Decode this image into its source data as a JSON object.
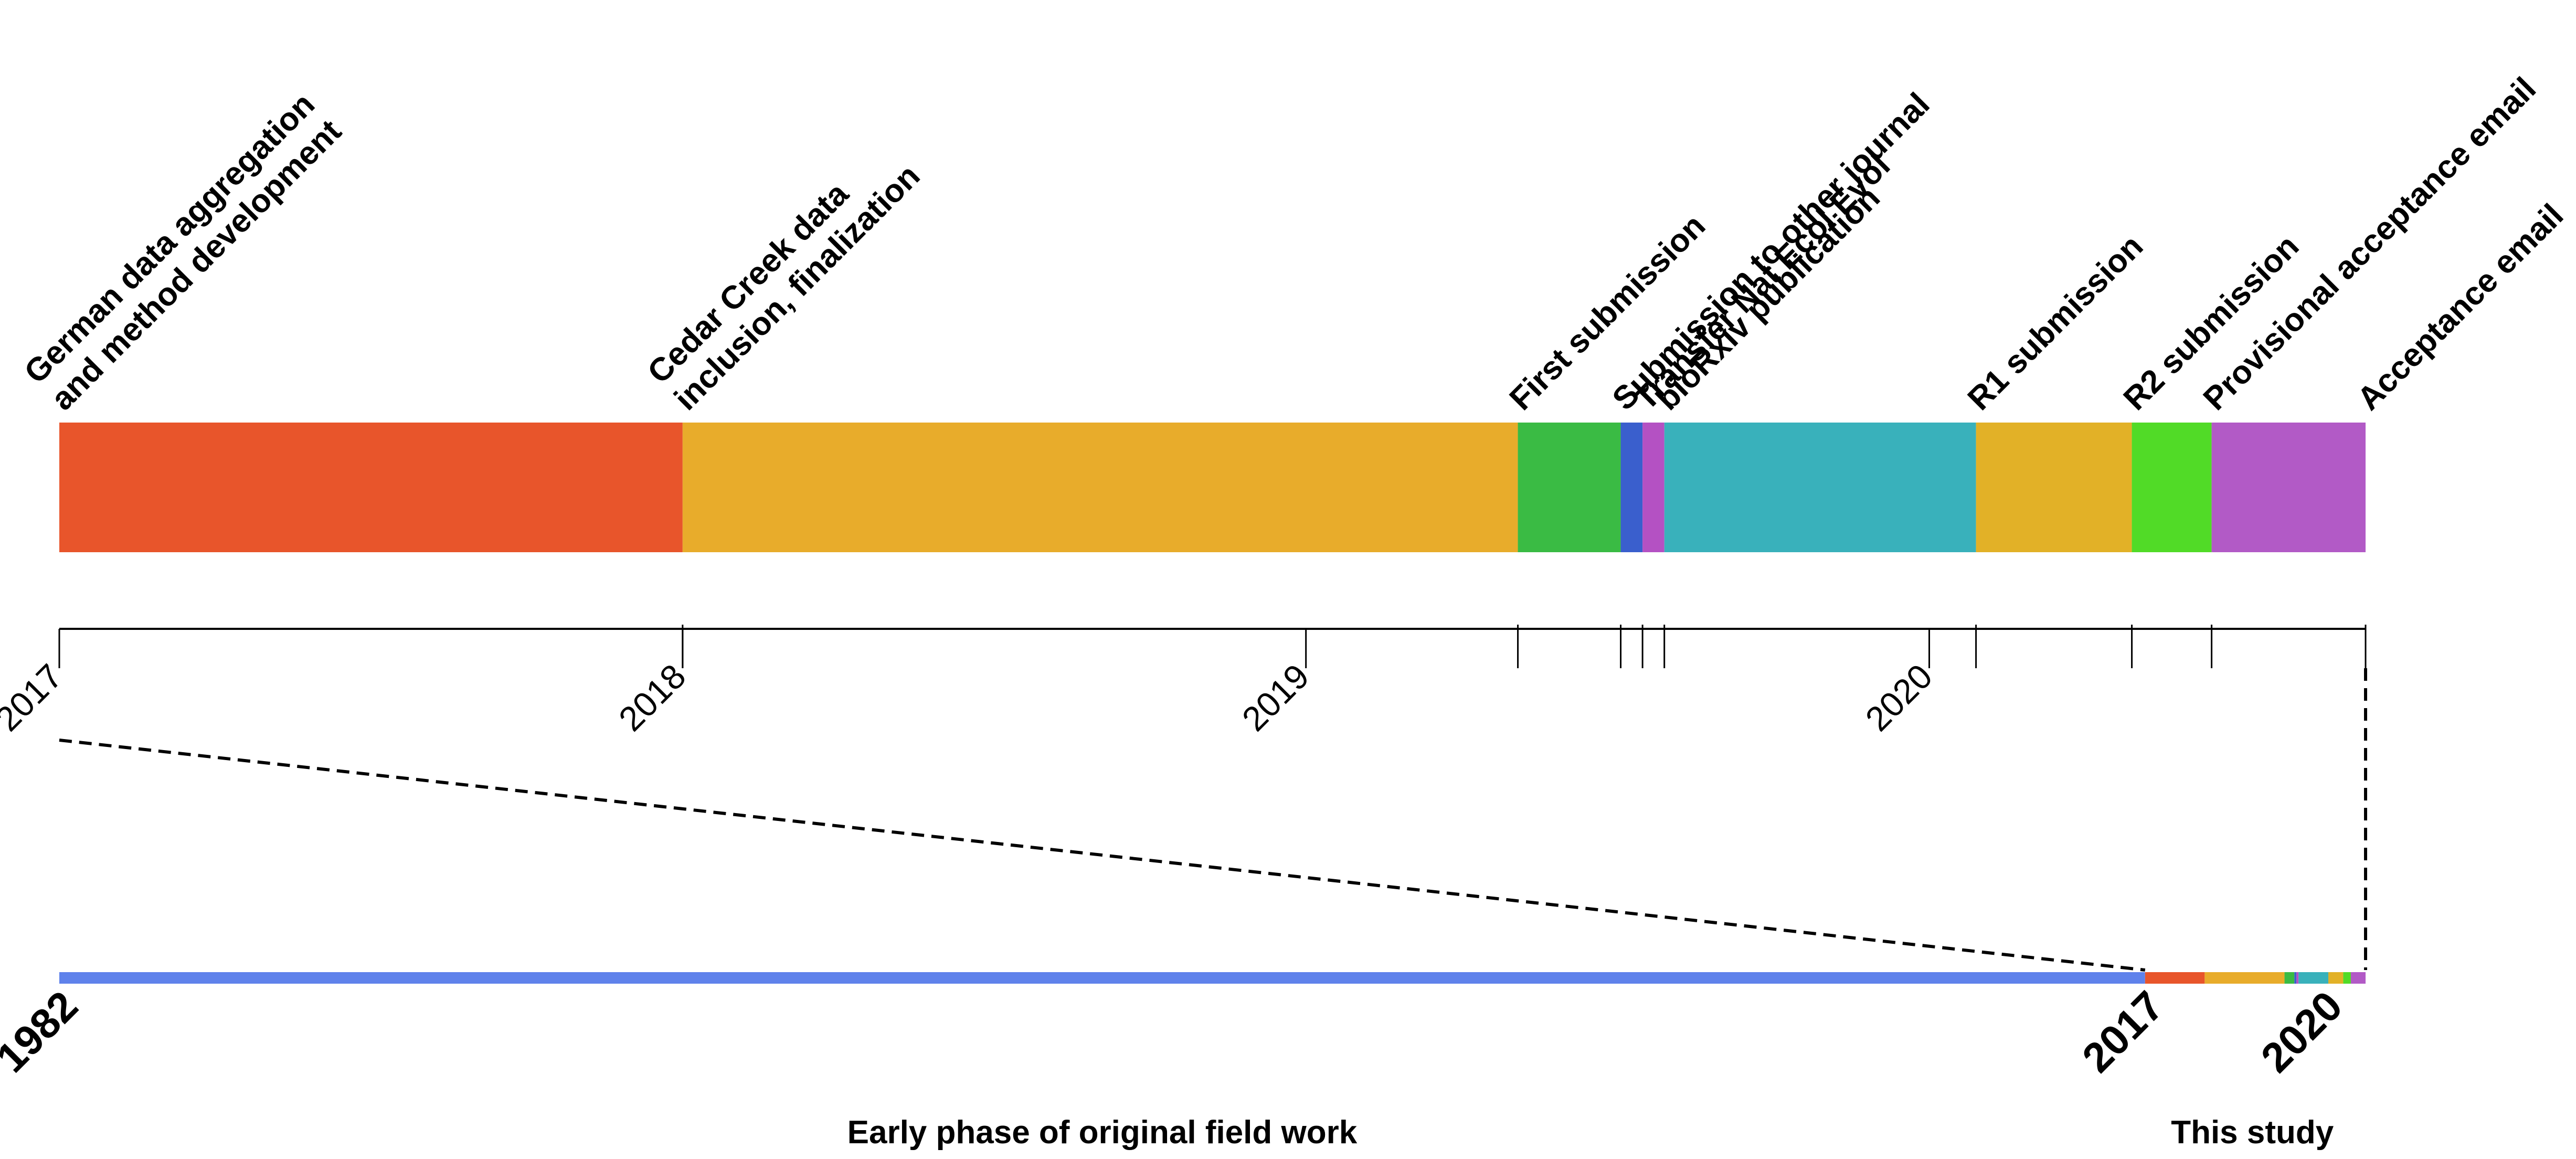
{
  "chart_data": {
    "type": "timeline",
    "top_timeline": {
      "axis_start": 2017.0,
      "axis_end": 2020.7,
      "tick_years": [
        "2017",
        "2018",
        "2019",
        "2020"
      ],
      "phases": [
        {
          "label": "German data aggregation\nand method development",
          "start": 2017.0,
          "end": 2018.0,
          "color": "#E8552B"
        },
        {
          "label": "Cedar Creek data\ninclusion, finalization",
          "start": 2018.0,
          "end": 2019.34,
          "color": "#E8AC2B"
        },
        {
          "label": "First submission",
          "start": 2019.34,
          "end": 2019.505,
          "color": "#3ABB44"
        },
        {
          "label": "Submission to other journal",
          "start": 2019.505,
          "end": 2019.54,
          "color": "#3A5FCD"
        },
        {
          "label": "Transfer Nat Ecol Evol",
          "start": 2019.54,
          "end": 2019.575,
          "color": "#B451C3"
        },
        {
          "label": "bioRxiv publication",
          "start": 2019.575,
          "end": 2020.075,
          "color": "#39B1BB"
        },
        {
          "label": "R1 submission",
          "start": 2020.075,
          "end": 2020.325,
          "color": "#E2B127"
        },
        {
          "label": "R2 submission",
          "start": 2020.325,
          "end": 2020.453,
          "color": "#51DB27"
        },
        {
          "label": "Provisional acceptance email",
          "start": 2020.453,
          "end": 2020.7,
          "color": "#B25AC6"
        },
        {
          "label": "Acceptance email",
          "start": 2020.7,
          "end": 2020.7,
          "color": "#B25AC6"
        }
      ]
    },
    "bottom_timeline": {
      "start_year": 1982,
      "end_year": 2020.7,
      "early_phase": {
        "label": "Early phase of original field work",
        "start": 1982,
        "end": 2017.0,
        "color": "#5F82EB"
      },
      "year_labels": [
        "1982",
        "2017",
        "2020"
      ],
      "this_study_label": "This study"
    }
  }
}
